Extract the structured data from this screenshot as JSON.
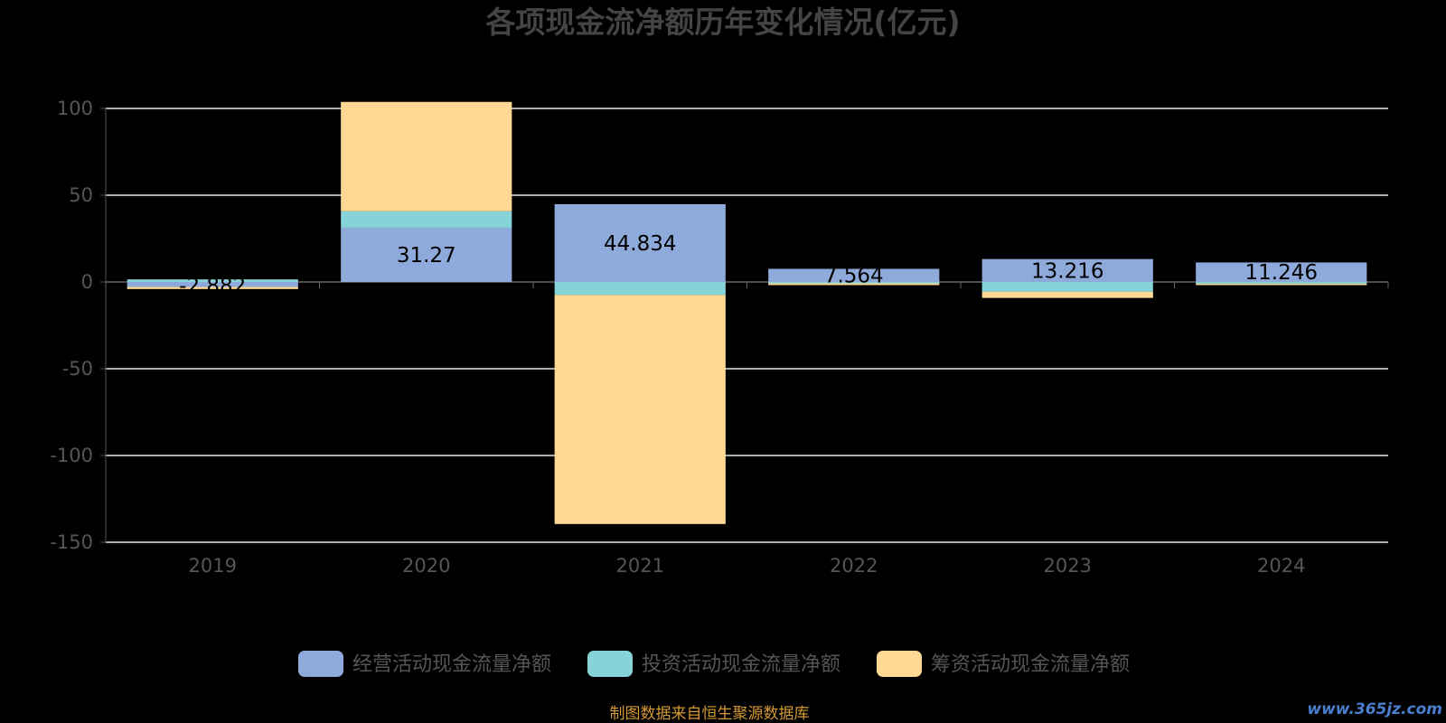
{
  "chart_data": {
    "type": "bar",
    "stacked": true,
    "title": "各项现金流净额历年变化情况(亿元)",
    "categories": [
      "2019",
      "2020",
      "2021",
      "2022",
      "2023",
      "2024"
    ],
    "series": [
      {
        "name": "经营活动现金流量净额",
        "color": "#8eaadb",
        "values": [
          -2.882,
          31.27,
          44.834,
          7.564,
          13.216,
          11.246
        ],
        "labels": [
          "-2.882",
          "31.27",
          "44.834",
          "7.564",
          "13.216",
          "11.246"
        ]
      },
      {
        "name": "投资活动现金流量净额",
        "color": "#86d4d8",
        "values": [
          1.5,
          9.5,
          -7.5,
          -0.8,
          -5.7,
          -1.0
        ]
      },
      {
        "name": "筹资活动现金流量净额",
        "color": "#ffd893",
        "values": [
          -1.2,
          63.0,
          -132.0,
          -1.0,
          -3.5,
          -0.8
        ]
      }
    ],
    "ylim": [
      -150,
      100
    ],
    "yticks": [
      100,
      50,
      0,
      -50,
      -100,
      -150
    ],
    "grid": true,
    "legend_position": "bottom"
  },
  "source_note": "制图数据来自恒生聚源数据库",
  "watermark": "www.365jz.com"
}
